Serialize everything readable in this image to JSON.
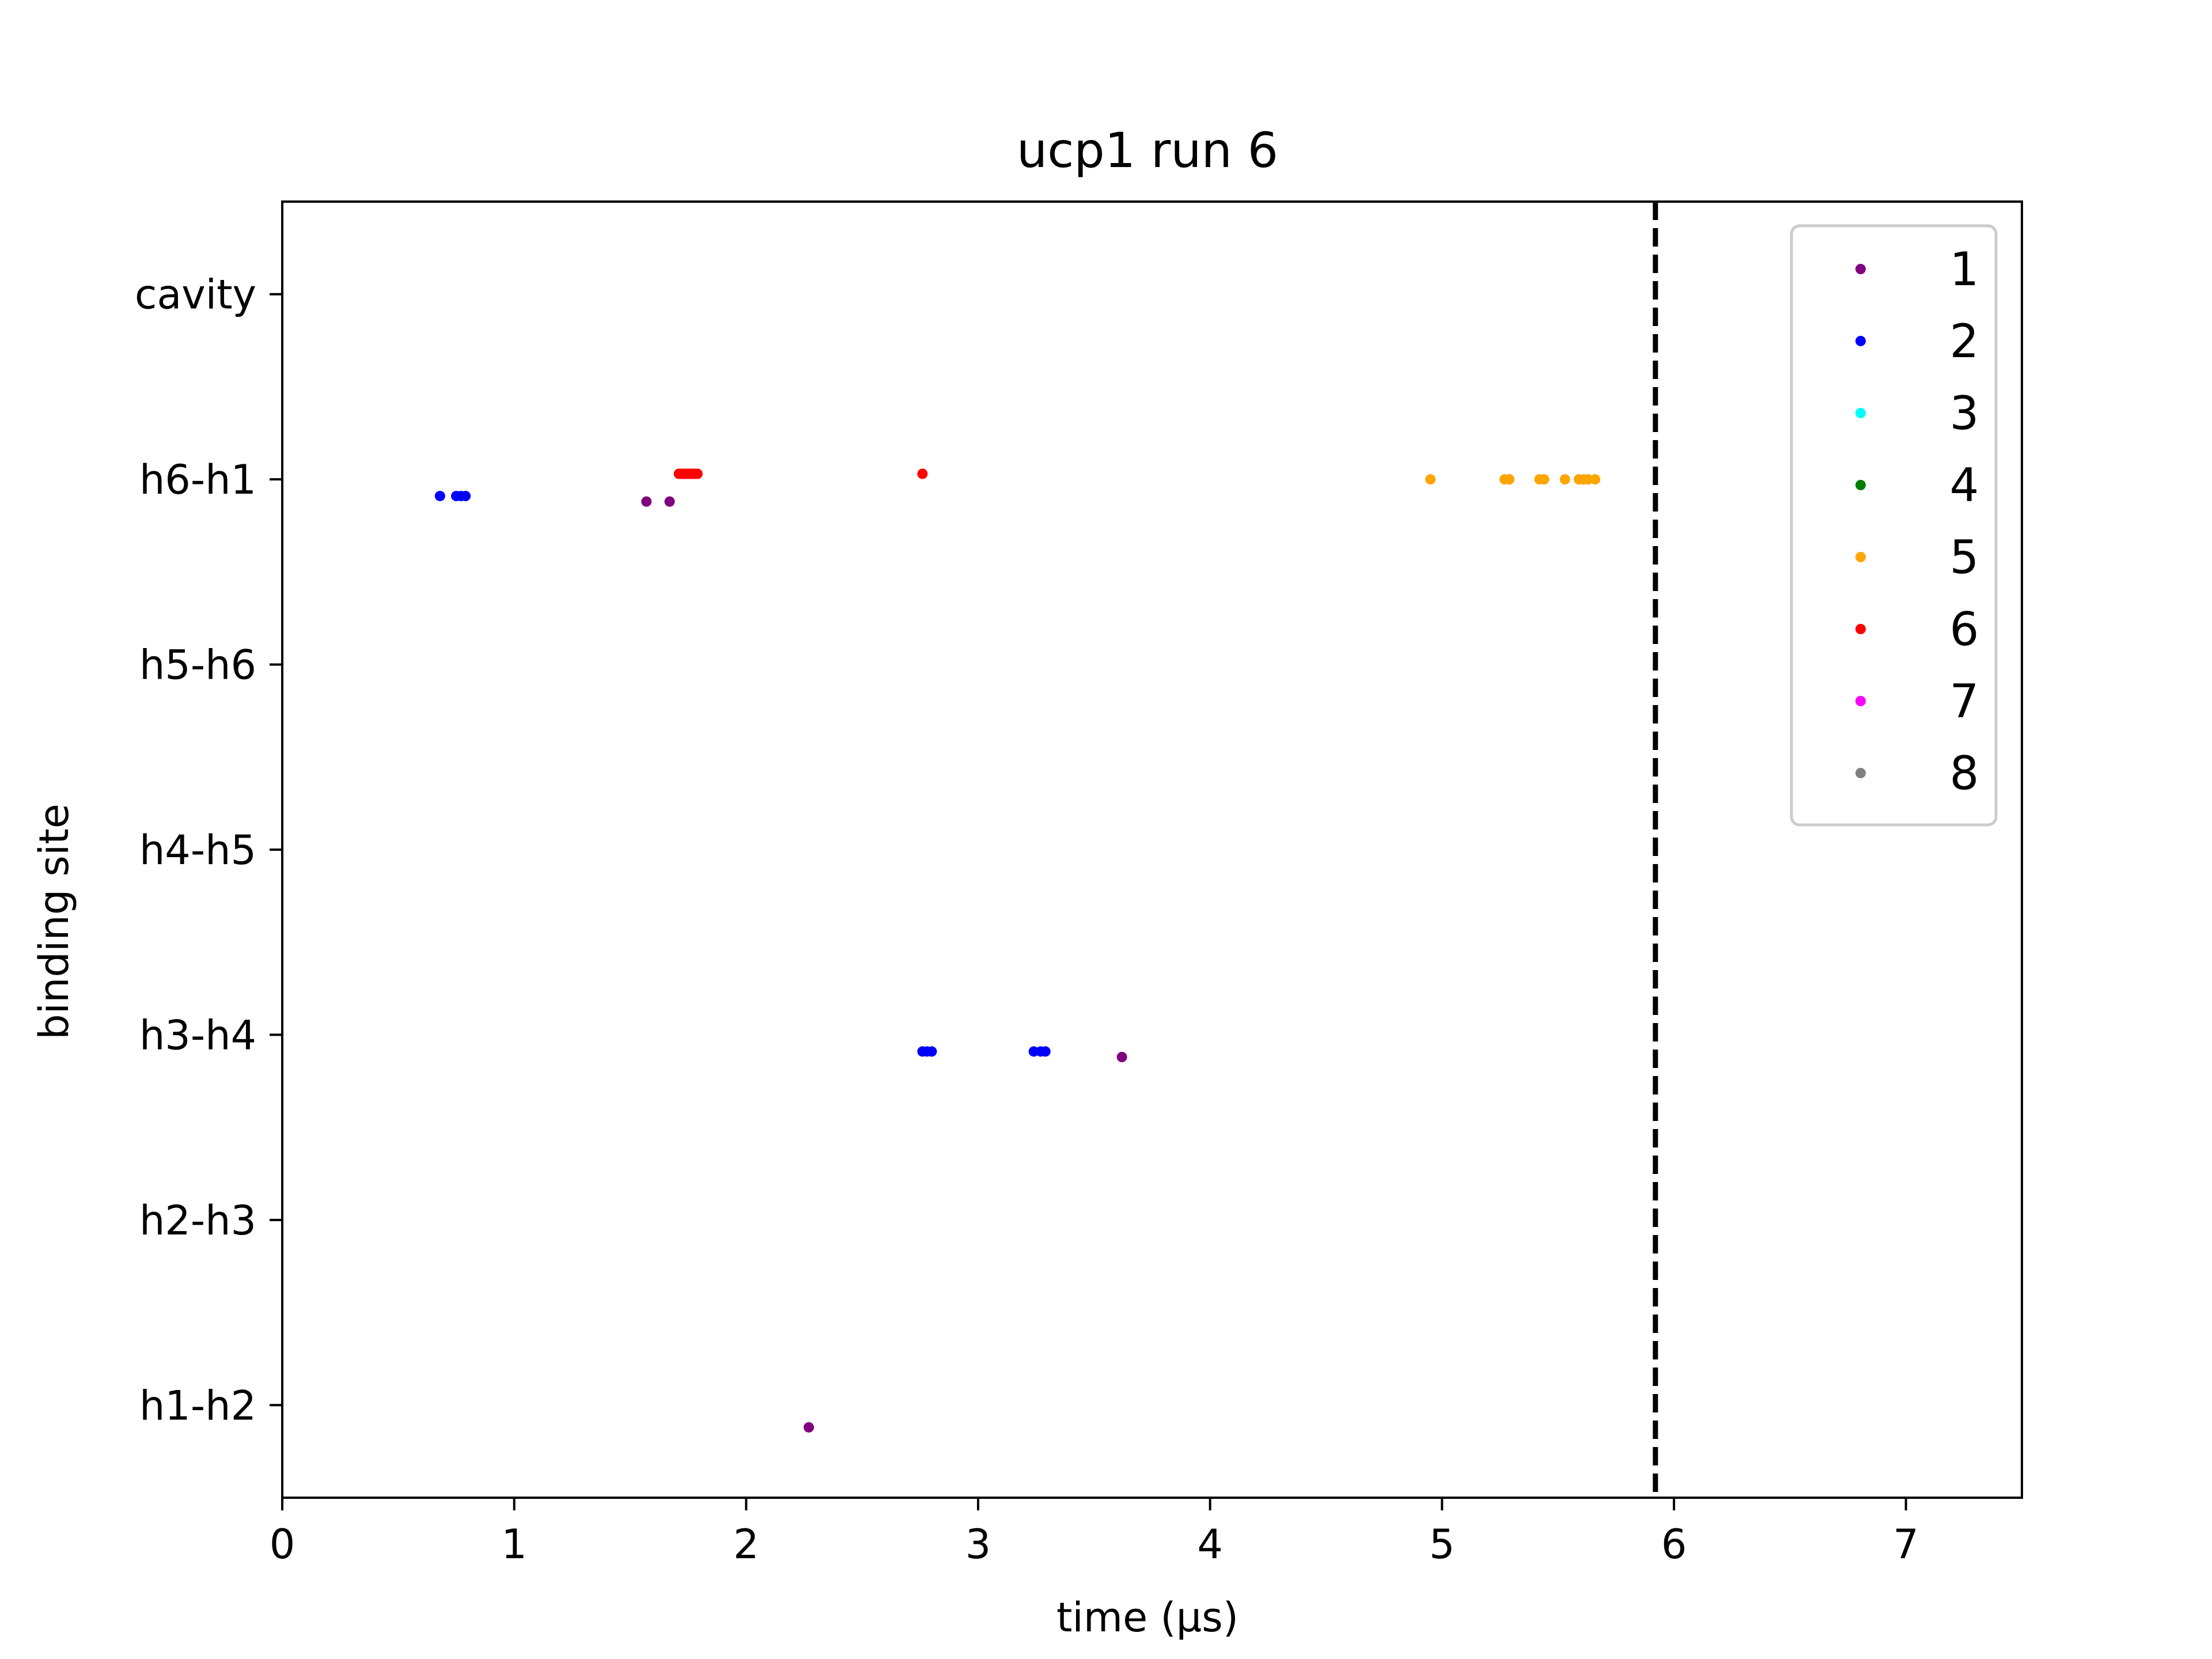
{
  "chart_data": {
    "type": "scatter",
    "title": "ucp1 run 6",
    "xlabel": "time (μs)",
    "ylabel": "binding site",
    "xlim": [
      0,
      7.5
    ],
    "xticks": [
      0,
      1,
      2,
      3,
      4,
      5,
      6,
      7
    ],
    "y_categories": [
      "h1-h2",
      "h2-h3",
      "h3-h4",
      "h4-h5",
      "h5-h6",
      "h6-h1",
      "cavity"
    ],
    "vline": {
      "x": 5.92,
      "style": "dashed",
      "color": "#000000"
    },
    "legend": {
      "placement": "top-right"
    },
    "series": [
      {
        "name": "1",
        "color": "#800080",
        "points": [
          {
            "x": 1.57,
            "y": 4.88
          },
          {
            "x": 1.67,
            "y": 4.88
          },
          {
            "x": 3.62,
            "y": 1.88
          },
          {
            "x": 2.27,
            "y": -0.12
          }
        ]
      },
      {
        "name": "2",
        "color": "#0000ff",
        "points": [
          {
            "x": 0.68,
            "y": 4.91
          },
          {
            "x": 0.75,
            "y": 4.91
          },
          {
            "x": 0.77,
            "y": 4.91
          },
          {
            "x": 0.79,
            "y": 4.91
          },
          {
            "x": 2.76,
            "y": 1.91
          },
          {
            "x": 2.78,
            "y": 1.91
          },
          {
            "x": 2.8,
            "y": 1.91
          },
          {
            "x": 3.24,
            "y": 1.91
          },
          {
            "x": 3.27,
            "y": 1.91
          },
          {
            "x": 3.29,
            "y": 1.91
          }
        ]
      },
      {
        "name": "3",
        "color": "#00ffff",
        "points": []
      },
      {
        "name": "4",
        "color": "#008000",
        "points": []
      },
      {
        "name": "5",
        "color": "#ffa500",
        "points": [
          {
            "x": 4.95,
            "y": 5.0
          },
          {
            "x": 5.27,
            "y": 5.0
          },
          {
            "x": 5.29,
            "y": 5.0
          },
          {
            "x": 5.42,
            "y": 5.0
          },
          {
            "x": 5.44,
            "y": 5.0
          },
          {
            "x": 5.53,
            "y": 5.0
          },
          {
            "x": 5.59,
            "y": 5.0
          },
          {
            "x": 5.61,
            "y": 5.0
          },
          {
            "x": 5.63,
            "y": 5.0
          },
          {
            "x": 5.66,
            "y": 5.0
          }
        ]
      },
      {
        "name": "6",
        "color": "#ff0000",
        "points": [
          {
            "x": 1.71,
            "y": 5.03
          },
          {
            "x": 1.73,
            "y": 5.03
          },
          {
            "x": 1.75,
            "y": 5.03
          },
          {
            "x": 1.77,
            "y": 5.03
          },
          {
            "x": 1.79,
            "y": 5.03
          },
          {
            "x": 1.72,
            "y": 5.03
          },
          {
            "x": 1.74,
            "y": 5.03
          },
          {
            "x": 1.76,
            "y": 5.03
          },
          {
            "x": 1.78,
            "y": 5.03
          },
          {
            "x": 2.76,
            "y": 5.03
          }
        ]
      },
      {
        "name": "7",
        "color": "#ff00ff",
        "points": []
      },
      {
        "name": "8",
        "color": "#808080",
        "points": []
      }
    ]
  }
}
